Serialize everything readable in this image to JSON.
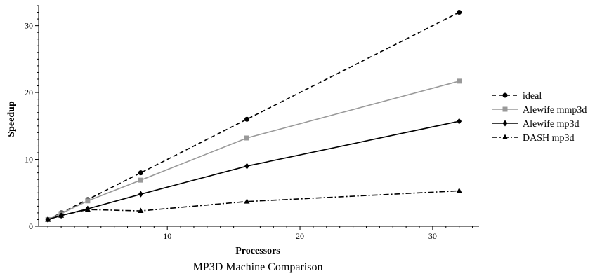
{
  "chart_data": {
    "type": "line",
    "title": "MP3D Machine Comparison",
    "xlabel": "Processors",
    "ylabel": "Speedup",
    "xlim": [
      0.3,
      33.5
    ],
    "ylim": [
      0,
      33
    ],
    "xticks": [
      10,
      20,
      30
    ],
    "yticks": [
      0,
      10,
      20,
      30
    ],
    "grid": false,
    "legend_position": "right",
    "series": [
      {
        "name": "ideal",
        "color": "#000000",
        "dash": "dashed",
        "marker": "circle",
        "x": [
          1,
          2,
          4,
          8,
          16,
          32
        ],
        "y": [
          1,
          2,
          4,
          8,
          16,
          32
        ]
      },
      {
        "name": "Alewife mmp3d",
        "color": "#999999",
        "dash": "solid",
        "marker": "square",
        "x": [
          1,
          2,
          4,
          8,
          16,
          32
        ],
        "y": [
          1,
          1.9,
          3.8,
          6.9,
          13.2,
          21.7
        ]
      },
      {
        "name": "Alewife mp3d",
        "color": "#000000",
        "dash": "solid",
        "marker": "diamond",
        "x": [
          1,
          2,
          4,
          8,
          16,
          32
        ],
        "y": [
          1,
          1.6,
          2.6,
          4.8,
          9.0,
          15.7
        ]
      },
      {
        "name": "DASH mp3d",
        "color": "#000000",
        "dash": "dashdot",
        "marker": "triangle",
        "x": [
          1,
          2,
          4,
          8,
          16,
          32
        ],
        "y": [
          1,
          1.6,
          2.5,
          2.3,
          3.7,
          5.3
        ]
      }
    ]
  }
}
